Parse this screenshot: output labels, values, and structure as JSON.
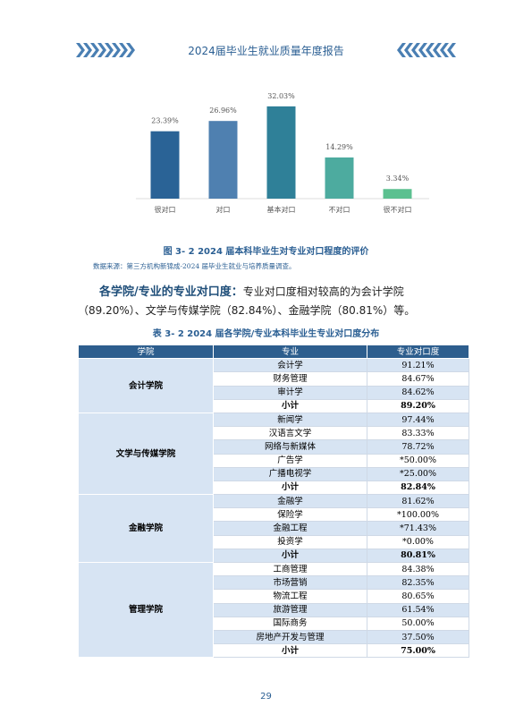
{
  "header": {
    "title": "2024届毕业生就业质量年度报告"
  },
  "chart_data": {
    "type": "bar",
    "categories": [
      "很对口",
      "对口",
      "基本对口",
      "不对口",
      "很不对口"
    ],
    "values": [
      23.39,
      26.96,
      32.03,
      14.29,
      3.34
    ],
    "value_labels": [
      "23.39%",
      "26.96%",
      "32.03%",
      "14.29%",
      "3.34%"
    ],
    "colors": [
      "#2a6396",
      "#4f80b0",
      "#2f8098",
      "#4dab9f",
      "#5cc090"
    ]
  },
  "figure": {
    "caption": "图 3- 2  2024 届本科毕业生对专业对口程度的评价",
    "source": "数据来源：第三方机构新锦成-2024 届毕业生就业与培养质量调查。"
  },
  "paragraph": {
    "lead": "各学院/专业的专业对口度：",
    "text": "专业对口度相对较高的为会计学院（89.20%）、文学与传媒学院（82.84%）、金融学院（80.81%）等。"
  },
  "table": {
    "caption": "表 3- 2  2024 届各学院/专业本科毕业生专业对口度分布",
    "header": [
      "学院",
      "专业",
      "专业对口度"
    ],
    "groups": [
      {
        "college": "会计学院",
        "rows": [
          [
            "会计学",
            "91.21%"
          ],
          [
            "财务管理",
            "84.67%"
          ],
          [
            "审计学",
            "84.62%"
          ]
        ],
        "subtotal": [
          "小计",
          "89.20%"
        ]
      },
      {
        "college": "文学与传媒学院",
        "rows": [
          [
            "新闻学",
            "97.44%"
          ],
          [
            "汉语言文学",
            "83.33%"
          ],
          [
            "网络与新媒体",
            "78.72%"
          ],
          [
            "广告学",
            "*50.00%"
          ],
          [
            "广播电视学",
            "*25.00%"
          ]
        ],
        "subtotal": [
          "小计",
          "82.84%"
        ]
      },
      {
        "college": "金融学院",
        "rows": [
          [
            "金融学",
            "81.62%"
          ],
          [
            "保险学",
            "*100.00%"
          ],
          [
            "金融工程",
            "*71.43%"
          ],
          [
            "投资学",
            "*0.00%"
          ]
        ],
        "subtotal": [
          "小计",
          "80.81%"
        ]
      },
      {
        "college": "管理学院",
        "rows": [
          [
            "工商管理",
            "84.38%"
          ],
          [
            "市场营销",
            "82.35%"
          ],
          [
            "物流工程",
            "80.65%"
          ],
          [
            "旅游管理",
            "61.54%"
          ],
          [
            "国际商务",
            "50.00%"
          ],
          [
            "房地产开发与管理",
            "37.50%"
          ]
        ],
        "subtotal": [
          "小计",
          "75.00%"
        ]
      }
    ]
  },
  "footer": {
    "page_number": "29"
  }
}
